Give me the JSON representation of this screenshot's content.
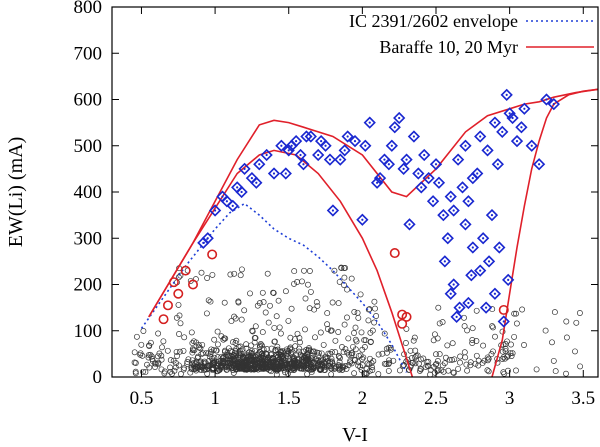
{
  "chart_data": {
    "type": "scatter",
    "title": "",
    "xlabel": "V-I",
    "ylabel": "EW(Li) (mA)",
    "xlim": [
      0.3,
      3.6
    ],
    "ylim": [
      0,
      800
    ],
    "x_ticks": [
      0.5,
      1,
      1.5,
      2,
      2.5,
      3,
      3.5
    ],
    "x_tick_labels": [
      "0.5",
      "1",
      "1.5",
      "2",
      "2.5",
      "3",
      "3.5"
    ],
    "y_ticks": [
      0,
      100,
      200,
      300,
      400,
      500,
      600,
      700,
      800
    ],
    "y_tick_labels": [
      "0",
      "100",
      "200",
      "300",
      "400",
      "500",
      "600",
      "700",
      "800"
    ],
    "legend_position": "top-right",
    "colors": {
      "envelope": "#1f3fd6",
      "baraffe": "#e0202a",
      "members": "#1a28d0",
      "red_circles": "#d42020",
      "field": "#333333"
    },
    "legend": [
      {
        "label": "IC 2391/2602 envelope",
        "style": "dotted",
        "color": "#1f3fd6"
      },
      {
        "label": "Baraffe 10, 20 Myr",
        "style": "solid",
        "color": "#e0202a"
      }
    ],
    "series": [
      {
        "name": "IC 2391/2602 envelope",
        "kind": "dotted-line",
        "x": [
          0.5,
          0.6,
          0.7,
          0.8,
          0.9,
          1.0,
          1.1,
          1.2,
          1.3,
          1.4,
          1.5,
          1.6,
          1.7,
          1.8,
          1.9,
          2.0,
          2.1,
          2.2,
          2.3
        ],
        "y": [
          105,
          150,
          195,
          240,
          280,
          320,
          355,
          375,
          350,
          320,
          300,
          285,
          260,
          230,
          195,
          160,
          120,
          70,
          10
        ]
      },
      {
        "name": "Baraffe 10 Myr",
        "kind": "solid-line",
        "x": [
          0.55,
          0.7,
          0.85,
          1.0,
          1.15,
          1.3,
          1.4,
          1.5,
          1.6,
          1.8,
          2.0,
          2.2,
          2.3,
          2.5,
          2.7,
          2.85,
          3.0,
          3.1,
          3.2,
          3.3,
          3.45,
          3.6
        ],
        "y": [
          130,
          210,
          290,
          380,
          470,
          545,
          555,
          550,
          540,
          520,
          480,
          400,
          390,
          450,
          530,
          565,
          580,
          590,
          595,
          605,
          615,
          622
        ]
      },
      {
        "name": "Baraffe 20 Myr",
        "kind": "solid-line",
        "x": [
          0.55,
          0.7,
          0.85,
          1.0,
          1.15,
          1.3,
          1.4,
          1.55,
          1.7,
          1.85,
          2.0,
          2.1,
          2.2,
          2.28,
          2.34
        ],
        "y": [
          130,
          210,
          290,
          365,
          440,
          480,
          490,
          480,
          440,
          380,
          300,
          230,
          140,
          60,
          0
        ]
      },
      {
        "name": "Baraffe 20 Myr (red tail)",
        "kind": "solid-line",
        "x": [
          2.88,
          2.95,
          3.0,
          3.05,
          3.1,
          3.15,
          3.2,
          3.25,
          3.3,
          3.4,
          3.5,
          3.6
        ],
        "y": [
          0,
          80,
          180,
          280,
          370,
          450,
          510,
          560,
          590,
          610,
          618,
          622
        ]
      },
      {
        "name": "Members (blue diamonds)",
        "kind": "diamond",
        "x": [
          0.95,
          1.0,
          1.08,
          1.12,
          1.15,
          1.2,
          1.25,
          1.3,
          1.35,
          1.4,
          1.45,
          1.5,
          1.55,
          1.6,
          1.65,
          1.7,
          1.75,
          1.8,
          1.85,
          1.9,
          1.95,
          2.0,
          2.05,
          2.1,
          2.15,
          2.2,
          2.25,
          2.3,
          2.35,
          2.4,
          2.45,
          2.5,
          2.55,
          2.6,
          2.65,
          2.7,
          2.75,
          2.8,
          2.85,
          2.9,
          2.95,
          3.0,
          3.05,
          3.1,
          3.15,
          3.2,
          3.25,
          3.3,
          0.92,
          1.05,
          1.18,
          1.28,
          1.48,
          1.52,
          1.58,
          1.62,
          1.72,
          1.78,
          1.88,
          2.02,
          2.12,
          2.18,
          2.22,
          2.28,
          2.32,
          2.38,
          2.42,
          2.48,
          2.52,
          2.58,
          2.62,
          2.68,
          2.72,
          2.78,
          2.82,
          2.88,
          2.92,
          2.98,
          3.02,
          3.08,
          2.56,
          2.62,
          2.7,
          2.75,
          2.8,
          2.84,
          2.9,
          2.96,
          2.6,
          2.66,
          2.74,
          2.86,
          2.93,
          2.99,
          2.64,
          2.72
        ],
        "y": [
          300,
          360,
          380,
          370,
          410,
          450,
          430,
          460,
          480,
          440,
          500,
          490,
          510,
          460,
          520,
          480,
          500,
          360,
          470,
          520,
          510,
          340,
          550,
          420,
          470,
          500,
          560,
          470,
          520,
          410,
          430,
          460,
          350,
          390,
          470,
          500,
          430,
          520,
          490,
          550,
          530,
          570,
          510,
          580,
          500,
          460,
          600,
          590,
          290,
          390,
          400,
          420,
          440,
          500,
          480,
          520,
          510,
          470,
          490,
          500,
          430,
          460,
          540,
          450,
          330,
          440,
          480,
          380,
          420,
          300,
          360,
          410,
          380,
          440,
          300,
          350,
          460,
          610,
          560,
          540,
          250,
          200,
          330,
          280,
          230,
          150,
          180,
          120,
          180,
          150,
          220,
          250,
          280,
          210,
          130,
          160
        ]
      },
      {
        "name": "Red circles",
        "kind": "circle-red",
        "x": [
          0.65,
          0.68,
          0.72,
          0.75,
          0.8,
          0.85,
          0.98,
          2.22,
          2.27,
          2.3,
          2.27,
          2.96
        ],
        "y": [
          125,
          155,
          205,
          180,
          230,
          200,
          265,
          268,
          135,
          130,
          115,
          145
        ]
      },
      {
        "name": "Field stars (open circles)",
        "kind": "circle-black",
        "count": 1100
      }
    ]
  }
}
